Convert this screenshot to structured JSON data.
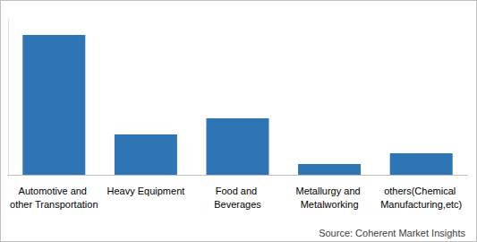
{
  "chart_data": {
    "type": "bar",
    "categories": [
      "Automotive and other Transportation",
      "Heavy Equipment",
      "Food and Beverages",
      "Metallurgy and Metalworking",
      "others(Chemical Manufacturing,etc)"
    ],
    "values": [
      52,
      15,
      21,
      4,
      8
    ],
    "color": "#2e75b6",
    "ylim": [
      0,
      58
    ],
    "grid": false,
    "tick_labels": "x",
    "source": "Source: Coherent Market Insights"
  }
}
